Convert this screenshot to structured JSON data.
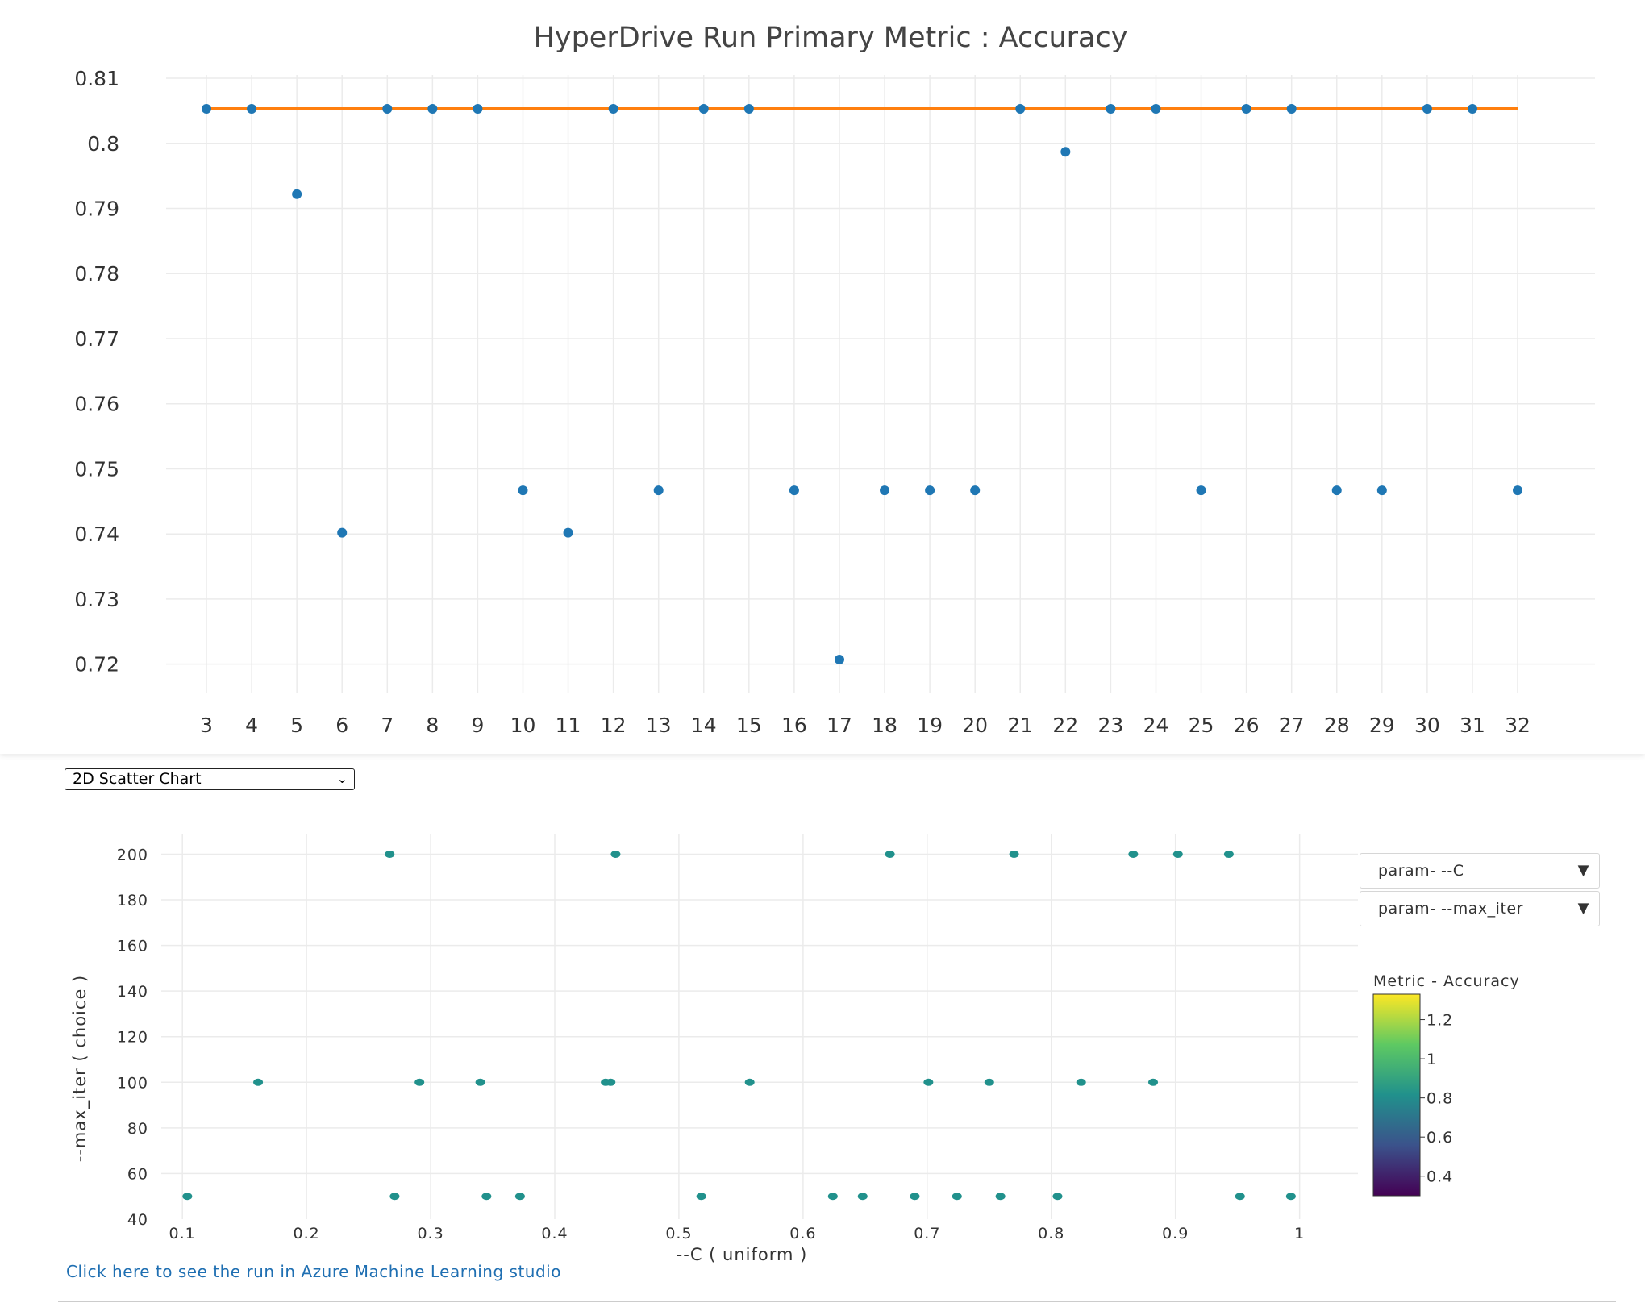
{
  "top_chart": {
    "title": "HyperDrive Run Primary Metric : Accuracy"
  },
  "chart_select": {
    "value": "2D Scatter Chart",
    "chevron_icon": "chevron-down-icon"
  },
  "scatter_controls": {
    "x_param": "param- --C",
    "y_param": "param- --max_iter",
    "dropdown_icon": "triangle-down-icon"
  },
  "colorbar": {
    "title": "Metric - Accuracy",
    "ticks": [
      "1.2",
      "1",
      "0.8",
      "0.6",
      "0.4"
    ],
    "colorscale": [
      "#fde725",
      "#5ec962",
      "#21918c",
      "#3b528b",
      "#440154"
    ]
  },
  "footer": {
    "link_text": "Click here to see the run in Azure Machine Learning studio",
    "link_color": "#1f6fb2"
  },
  "chart_data": [
    {
      "type": "scatter",
      "title": "HyperDrive Run Primary Metric : Accuracy",
      "xlabel": "",
      "ylabel": "",
      "xticks": [
        "3",
        "4",
        "5",
        "6",
        "7",
        "8",
        "9",
        "10",
        "11",
        "12",
        "13",
        "14",
        "15",
        "16",
        "17",
        "18",
        "19",
        "20",
        "21",
        "22",
        "23",
        "24",
        "25",
        "26",
        "27",
        "28",
        "29",
        "30",
        "31",
        "32"
      ],
      "yticks": [
        "0.81",
        "0.8",
        "0.79",
        "0.78",
        "0.77",
        "0.76",
        "0.75",
        "0.74",
        "0.73",
        "0.72"
      ],
      "ylim": [
        0.7155,
        0.8105
      ],
      "grid": true,
      "series": [
        {
          "color": "#1f77b4",
          "mode": "markers",
          "x": [
            3,
            4,
            5,
            6,
            7,
            8,
            9,
            10,
            11,
            12,
            13,
            14,
            15,
            16,
            17,
            18,
            19,
            20,
            21,
            22,
            23,
            24,
            25,
            26,
            27,
            28,
            29,
            30,
            31,
            32
          ],
          "y": [
            0.8053,
            0.8053,
            0.7922,
            0.7402,
            0.8053,
            0.8053,
            0.8053,
            0.7467,
            0.7402,
            0.8053,
            0.7467,
            0.8053,
            0.8053,
            0.7467,
            0.7207,
            0.7467,
            0.7467,
            0.7467,
            0.8053,
            0.7987,
            0.8053,
            0.8053,
            0.7467,
            0.8053,
            0.8053,
            0.7467,
            0.7467,
            0.8053,
            0.8053,
            0.7467
          ]
        },
        {
          "color": "#ff7f0e",
          "mode": "line",
          "x": [
            3,
            32
          ],
          "y": [
            0.8053,
            0.8053
          ]
        }
      ]
    },
    {
      "type": "scatter",
      "xlabel": "--C ( uniform )",
      "ylabel": "--max_iter ( choice )",
      "xticks": [
        "0.1",
        "0.2",
        "0.3",
        "0.4",
        "0.5",
        "0.6",
        "0.7",
        "0.8",
        "0.9",
        "1"
      ],
      "xtick_values": [
        0.1,
        0.2,
        0.3,
        0.4,
        0.5,
        0.6,
        0.7,
        0.8,
        0.9,
        1
      ],
      "yticks": [
        "200",
        "180",
        "160",
        "140",
        "120",
        "100",
        "80",
        "60",
        "40"
      ],
      "ytick_values": [
        200,
        180,
        160,
        140,
        120,
        100,
        80,
        60,
        40
      ],
      "xlim": [
        0.083,
        1.047
      ],
      "ylim": [
        40,
        209
      ],
      "grid": true,
      "marker_color": "#21918c",
      "points": [
        {
          "x": 0.267,
          "y": 200
        },
        {
          "x": 0.449,
          "y": 200
        },
        {
          "x": 0.67,
          "y": 200
        },
        {
          "x": 0.77,
          "y": 200
        },
        {
          "x": 0.866,
          "y": 200
        },
        {
          "x": 0.902,
          "y": 200
        },
        {
          "x": 0.943,
          "y": 200
        },
        {
          "x": 0.161,
          "y": 100
        },
        {
          "x": 0.291,
          "y": 100
        },
        {
          "x": 0.34,
          "y": 100
        },
        {
          "x": 0.441,
          "y": 100
        },
        {
          "x": 0.445,
          "y": 100
        },
        {
          "x": 0.557,
          "y": 100
        },
        {
          "x": 0.701,
          "y": 100
        },
        {
          "x": 0.75,
          "y": 100
        },
        {
          "x": 0.824,
          "y": 100
        },
        {
          "x": 0.882,
          "y": 100
        },
        {
          "x": 0.104,
          "y": 50
        },
        {
          "x": 0.271,
          "y": 50
        },
        {
          "x": 0.345,
          "y": 50
        },
        {
          "x": 0.372,
          "y": 50
        },
        {
          "x": 0.518,
          "y": 50
        },
        {
          "x": 0.624,
          "y": 50
        },
        {
          "x": 0.648,
          "y": 50
        },
        {
          "x": 0.69,
          "y": 50
        },
        {
          "x": 0.724,
          "y": 50
        },
        {
          "x": 0.759,
          "y": 50
        },
        {
          "x": 0.805,
          "y": 50
        },
        {
          "x": 0.952,
          "y": 50
        },
        {
          "x": 0.993,
          "y": 50
        }
      ]
    }
  ]
}
